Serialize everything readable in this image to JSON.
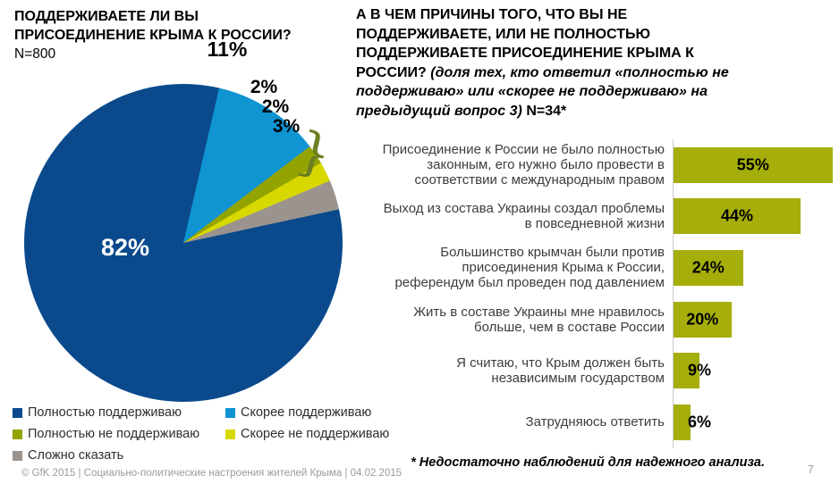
{
  "left_chart": {
    "title": "ПОДДЕРЖИВАЕТЕ ЛИ ВЫ\nПРИСОЕДИНЕНИЕ КРЫМА К РОССИИ?",
    "n_label": "N=800"
  },
  "right_chart": {
    "title_part1": "А В ЧЕМ ПРИЧИНЫ ТОГО, ЧТО ВЫ НЕ\nПОДДЕРЖИВАЕТЕ, ИЛИ НЕ ПОЛНОСТЬЮ\nПОДДЕРЖИВАЕТЕ ПРИСОЕДИНЕНИЕ КРЫМА К\nРОССИИ? ",
    "title_italic": "(доля тех, кто ответил «полностью не\nподдерживаю» или «скорее не поддерживаю» на\nпредыдущий вопрос 3)",
    "title_suffix": " N=34*"
  },
  "decor": {
    "brace_glyph": "}"
  },
  "footnote": "* Недостаточно наблюдений для надежного анализа.",
  "footer": "© GfK 2015 | Социально-политические настроения жителей Крыма | 04.02.2015",
  "page_number": "7",
  "chart_data": [
    {
      "type": "pie",
      "title": "ПОДДЕРЖИВАЕТЕ ЛИ ВЫ ПРИСОЕДИНЕНИЕ КРЫМА К РОССИИ?",
      "sample_size": "N=800",
      "labels": [
        "Полностью поддерживаю",
        "Скорее поддерживаю",
        "Полностью не поддерживаю",
        "Скорее не поддерживаю",
        "Сложно сказать"
      ],
      "values": [
        82,
        11,
        2,
        2,
        3
      ],
      "value_labels": [
        "82%",
        "11%",
        "2%",
        "2%",
        "3%"
      ],
      "colors": [
        "#0a4a8c",
        "#1094d2",
        "#93a300",
        "#d7d800",
        "#9b938d"
      ],
      "draw_order": [
        1,
        2,
        3,
        4,
        0
      ],
      "start_angle_deg": 13,
      "direction": "clockwise",
      "legend_position": "bottom-left"
    },
    {
      "type": "bar",
      "orientation": "horizontal",
      "title": "А В ЧЕМ ПРИЧИНЫ ТОГО, ЧТО ВЫ НЕ ПОДДЕРЖИВАЕТЕ, ИЛИ НЕ ПОЛНОСТЬЮ ПОДДЕРЖИВАЕТЕ ПРИСОЕДИНЕНИЕ КРЫМА К РОССИИ? (доля тех, кто ответил «полностью не поддерживаю» или «скорее не поддерживаю» на предыдущий вопрос 3) N=34*",
      "categories": [
        "Присоединение к России не было полностью\nзаконным, его нужно было провести в\nсоответствии с международным правом",
        "Выход из состава Украины создал проблемы\nв повседневной жизни",
        "Большинство крымчан были против\nприсоединения Крыма к России,\nреферендум был проведен под давлением",
        "Жить в составе Украины мне нравилось\nбольше, чем в составе России",
        "Я считаю, что Крым должен быть\nнезависимым государством",
        "Затрудняюсь ответить"
      ],
      "values": [
        55,
        44,
        24,
        20,
        9,
        6
      ],
      "value_labels": [
        "55%",
        "44%",
        "24%",
        "20%",
        "9%",
        "6%"
      ],
      "bar_color": "#a5ae0b",
      "xlim": [
        0,
        57
      ],
      "grid": false,
      "note": "* Недостаточно наблюдений для надежного анализа."
    }
  ]
}
